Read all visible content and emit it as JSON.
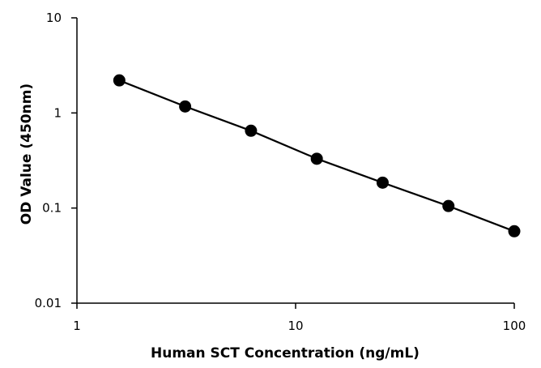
{
  "chart_data": {
    "type": "line",
    "title": "",
    "xlabel": "Human SCT Concentration (ng/mL)",
    "ylabel": "OD Value (450nm)",
    "x_scale": "log",
    "y_scale": "log",
    "xlim": [
      1,
      100
    ],
    "ylim": [
      0.01,
      10
    ],
    "x_ticks": [
      1,
      10,
      100
    ],
    "x_tick_labels": [
      "1",
      "10",
      "100"
    ],
    "y_ticks": [
      0.01,
      0.1,
      1,
      10
    ],
    "y_tick_labels": [
      "0.01",
      "0.1",
      "1",
      "10"
    ],
    "grid": false,
    "legend": "none",
    "series": [
      {
        "color": "#000000",
        "marker": "circle",
        "x": [
          1.5625,
          3.125,
          6.25,
          12.5,
          25,
          50,
          100
        ],
        "y": [
          2.2,
          1.17,
          0.65,
          0.33,
          0.185,
          0.105,
          0.057
        ]
      }
    ]
  }
}
